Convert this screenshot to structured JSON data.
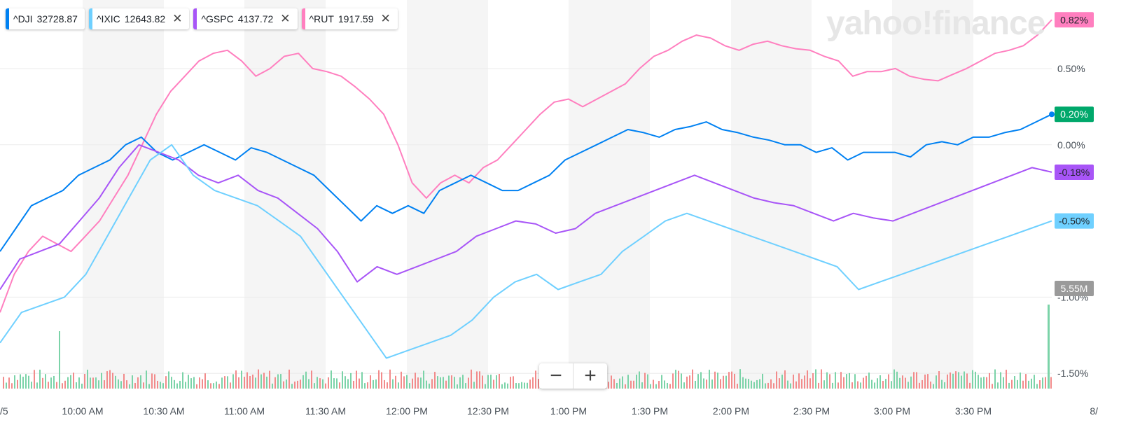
{
  "watermark": "yahoo!finance",
  "legend": [
    {
      "symbol": "^DJI",
      "value": "32728.87",
      "color": "#0081f2",
      "removable": false
    },
    {
      "symbol": "^IXIC",
      "value": "12643.82",
      "color": "#6fd0ff",
      "removable": true
    },
    {
      "symbol": "^GSPC",
      "value": "4137.72",
      "color": "#a855f7",
      "removable": true
    },
    {
      "symbol": "^RUT",
      "value": "1917.59",
      "color": "#ff7fbf",
      "removable": true
    }
  ],
  "zoom": {
    "minus": "−",
    "plus": "+"
  },
  "chart_data": {
    "type": "line",
    "y_ticks": [
      "0.50%",
      "0.00%",
      "-1.00%",
      "-1.50%"
    ],
    "x_ticks": [
      "10:00 AM",
      "10:30 AM",
      "11:00 AM",
      "11:30 AM",
      "12:00 PM",
      "12:30 PM",
      "1:00 PM",
      "1:30 PM",
      "2:00 PM",
      "2:30 PM",
      "3:00 PM",
      "3:30 PM"
    ],
    "x_edge_left": "/5",
    "x_edge_right": "8/",
    "ylim": [
      -1.5,
      0.9
    ],
    "end_labels": [
      {
        "text": "0.82%",
        "bg": "#ff7fbf",
        "color": "#1d2228"
      },
      {
        "text": "0.20%",
        "bg": "#00a86b",
        "color": "#ffffff"
      },
      {
        "text": "-0.18%",
        "bg": "#a855f7",
        "color": "#1d2228"
      },
      {
        "text": "-0.50%",
        "bg": "#6fd0ff",
        "color": "#1d2228"
      }
    ],
    "volume_label": "5.55M",
    "series": [
      {
        "name": "^RUT",
        "color": "#ff7fbf",
        "values": [
          -1.1,
          -0.85,
          -0.7,
          -0.6,
          -0.65,
          -0.7,
          -0.6,
          -0.5,
          -0.35,
          -0.2,
          0.0,
          0.2,
          0.35,
          0.45,
          0.55,
          0.6,
          0.62,
          0.55,
          0.45,
          0.5,
          0.58,
          0.6,
          0.5,
          0.48,
          0.45,
          0.38,
          0.3,
          0.2,
          0.0,
          -0.25,
          -0.35,
          -0.25,
          -0.2,
          -0.25,
          -0.15,
          -0.1,
          0.0,
          0.1,
          0.2,
          0.28,
          0.3,
          0.25,
          0.3,
          0.35,
          0.4,
          0.5,
          0.58,
          0.62,
          0.68,
          0.72,
          0.7,
          0.65,
          0.62,
          0.66,
          0.68,
          0.65,
          0.63,
          0.62,
          0.58,
          0.55,
          0.45,
          0.48,
          0.48,
          0.5,
          0.45,
          0.43,
          0.42,
          0.46,
          0.5,
          0.55,
          0.6,
          0.62,
          0.65,
          0.72,
          0.82
        ]
      },
      {
        "name": "^DJI",
        "color": "#0081f2",
        "values": [
          -0.7,
          -0.55,
          -0.4,
          -0.35,
          -0.3,
          -0.2,
          -0.15,
          -0.1,
          0.0,
          0.05,
          -0.05,
          -0.1,
          -0.05,
          0.0,
          -0.05,
          -0.1,
          -0.02,
          -0.05,
          -0.1,
          -0.15,
          -0.2,
          -0.3,
          -0.4,
          -0.5,
          -0.4,
          -0.45,
          -0.4,
          -0.45,
          -0.3,
          -0.25,
          -0.2,
          -0.25,
          -0.3,
          -0.3,
          -0.25,
          -0.2,
          -0.1,
          -0.05,
          0.0,
          0.05,
          0.1,
          0.08,
          0.05,
          0.1,
          0.12,
          0.15,
          0.1,
          0.08,
          0.05,
          0.03,
          0.0,
          0.0,
          -0.05,
          -0.02,
          -0.1,
          -0.05,
          -0.05,
          -0.05,
          -0.08,
          0.0,
          0.02,
          0.0,
          0.05,
          0.05,
          0.08,
          0.1,
          0.15,
          0.2
        ]
      },
      {
        "name": "^GSPC",
        "color": "#a855f7",
        "values": [
          -0.95,
          -0.75,
          -0.7,
          -0.65,
          -0.5,
          -0.35,
          -0.15,
          0.0,
          -0.05,
          -0.1,
          -0.2,
          -0.25,
          -0.2,
          -0.3,
          -0.35,
          -0.45,
          -0.55,
          -0.7,
          -0.9,
          -0.8,
          -0.85,
          -0.8,
          -0.75,
          -0.7,
          -0.6,
          -0.55,
          -0.5,
          -0.52,
          -0.58,
          -0.55,
          -0.45,
          -0.4,
          -0.35,
          -0.3,
          -0.25,
          -0.2,
          -0.25,
          -0.3,
          -0.35,
          -0.38,
          -0.4,
          -0.45,
          -0.5,
          -0.45,
          -0.48,
          -0.5,
          -0.45,
          -0.4,
          -0.35,
          -0.3,
          -0.25,
          -0.2,
          -0.15,
          -0.18
        ]
      },
      {
        "name": "^IXIC",
        "color": "#6fd0ff",
        "values": [
          -1.3,
          -1.1,
          -1.05,
          -1.0,
          -0.85,
          -0.6,
          -0.35,
          -0.1,
          0.0,
          -0.2,
          -0.3,
          -0.35,
          -0.4,
          -0.5,
          -0.6,
          -0.8,
          -1.0,
          -1.2,
          -1.4,
          -1.35,
          -1.3,
          -1.25,
          -1.15,
          -1.0,
          -0.9,
          -0.85,
          -0.95,
          -0.9,
          -0.85,
          -0.7,
          -0.6,
          -0.5,
          -0.45,
          -0.5,
          -0.55,
          -0.6,
          -0.65,
          -0.7,
          -0.75,
          -0.8,
          -0.95,
          -0.9,
          -0.85,
          -0.8,
          -0.75,
          -0.7,
          -0.65,
          -0.6,
          -0.55,
          -0.5
        ]
      }
    ]
  }
}
